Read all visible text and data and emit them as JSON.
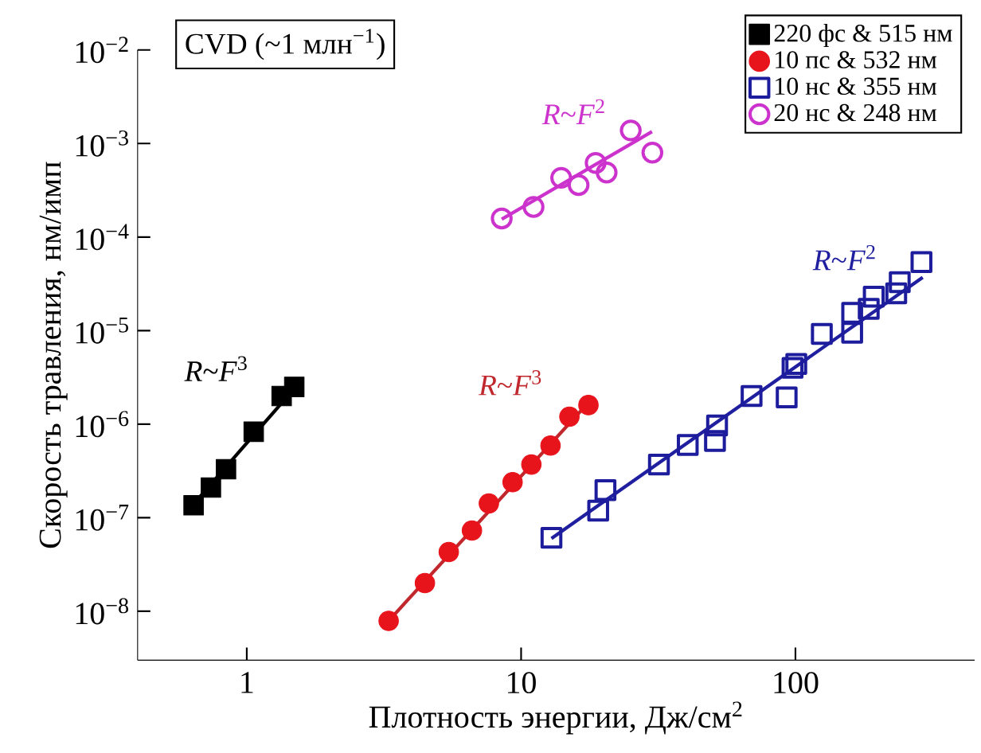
{
  "chart_data": {
    "type": "scatter",
    "xlabel": "Плотность энергии, Дж/см$^{2}$",
    "ylabel": "Скорость травления, нм/имп",
    "log": "xy",
    "xlim": [
      0.4,
      450
    ],
    "ylim": [
      3e-09,
      0.01
    ],
    "xticks": [
      1,
      10,
      100
    ],
    "yticks": [
      {
        "value": 1e-08,
        "label": "10$^{−8}$"
      },
      {
        "value": 1e-07,
        "label": "10$^{−7}$"
      },
      {
        "value": 1e-06,
        "label": "10$^{−6}$"
      },
      {
        "value": 1e-05,
        "label": "10$^{−5}$"
      },
      {
        "value": 0.0001,
        "label": "10$^{−4}$"
      },
      {
        "value": 0.001,
        "label": "10$^{−3}$"
      },
      {
        "value": 0.01,
        "label": "10$^{−2}$"
      }
    ],
    "grid": false,
    "legend": "top right",
    "series": [
      {
        "name": "220 фс & 515 нм",
        "marker": "square",
        "color": "#000000",
        "x": [
          0.64,
          0.74,
          0.84,
          1.06,
          1.34,
          1.49
        ],
        "values": [
          1.36e-07,
          2.1e-07,
          3.3e-07,
          8.3e-07,
          2e-06,
          2.5e-06
        ]
      },
      {
        "name": "10 пс & 532 нм",
        "marker": "circle",
        "color": "#e8141c",
        "x": [
          3.29,
          4.46,
          5.45,
          6.62,
          7.63,
          9.31,
          10.9,
          12.8,
          15.0,
          17.6
        ],
        "values": [
          7.9e-09,
          2e-08,
          4.3e-08,
          7.3e-08,
          1.42e-07,
          2.4e-07,
          3.7e-07,
          5.9e-07,
          1.2e-06,
          1.6e-06
        ]
      },
      {
        "name": "10 нс & 355 нм",
        "marker": "square",
        "color": "#1c1c9c",
        "x": [
          12.9,
          19.1,
          20.3,
          31.8,
          40.5,
          50.9,
          51.8,
          69.2,
          92.9,
          97.6,
          100.7,
          124.8,
          161,
          161,
          185,
          193,
          233,
          240,
          288
        ],
        "values": [
          6.1e-08,
          1.19e-07,
          1.97e-07,
          3.7e-07,
          6e-07,
          6.6e-07,
          9.7e-07,
          2e-06,
          1.93e-06,
          4e-06,
          4.4e-06,
          9.2e-06,
          9.5e-06,
          1.55e-05,
          1.71e-05,
          2.3e-05,
          2.5e-05,
          3.3e-05,
          5.4e-05
        ]
      },
      {
        "name": "20 нс & 248 нм",
        "marker": "circle",
        "color": "#cc33cc",
        "x": [
          8.5,
          11.1,
          14.0,
          16.2,
          18.7,
          20.5,
          25.1,
          30.1
        ],
        "values": [
          0.000158,
          0.00021,
          0.00043,
          0.00036,
          0.00062,
          0.00049,
          0.00138,
          0.0008
        ]
      },
      {
        "type": "line",
        "marker": "none",
        "color": "#000000",
        "x": [
          0.64,
          1.49
        ],
        "values": [
          1.4e-07,
          2.4e-06
        ]
      },
      {
        "type": "line",
        "marker": "none",
        "color": "#c0282d",
        "x": [
          3.29,
          17.6
        ],
        "values": [
          7.9e-09,
          1.7e-06
        ]
      },
      {
        "type": "line",
        "marker": "none",
        "color": "#1f1f9f",
        "x": [
          12.9,
          291
        ],
        "values": [
          6e-08,
          3.7e-05
        ]
      },
      {
        "type": "line",
        "marker": "none",
        "color": "#cc33cc",
        "x": [
          8.5,
          30
        ],
        "values": [
          0.000155,
          0.00134
        ]
      }
    ],
    "annotations": [
      "CVD (~1 млн$^{−1}$)",
      "*R*~*F*$^{3}$",
      "*R*~*F*$^{3}$",
      "*R*~*F*$^{2}$",
      "*R*~*F*$^{2}$"
    ]
  }
}
